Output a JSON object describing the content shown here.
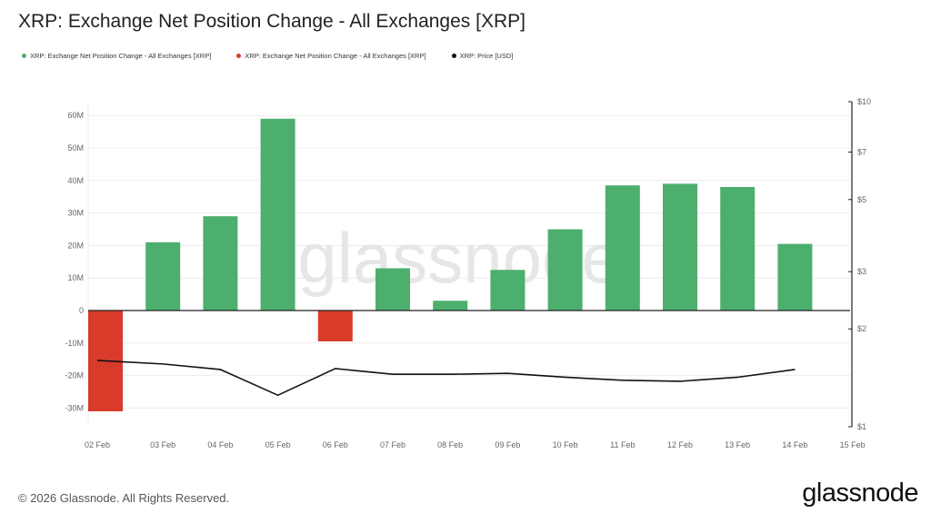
{
  "chart_data": {
    "type": "bar",
    "title": "XRP: Exchange Net Position Change - All Exchanges [XRP]",
    "categories": [
      "02 Feb",
      "03 Feb",
      "04 Feb",
      "05 Feb",
      "06 Feb",
      "07 Feb",
      "08 Feb",
      "09 Feb",
      "10 Feb",
      "11 Feb",
      "12 Feb",
      "13 Feb",
      "14 Feb",
      "15 Feb"
    ],
    "series": [
      {
        "name": "XRP: Exchange Net Position Change - All Exchanges [XRP]",
        "axis": "left",
        "values": [
          -31,
          21,
          29,
          59,
          -9.5,
          13,
          3,
          12.5,
          25,
          38.5,
          39,
          38,
          20.5,
          null
        ]
      },
      {
        "name": "XRP: Price [USD]",
        "axis": "right",
        "type": "line",
        "values": [
          1.6,
          1.56,
          1.5,
          1.25,
          1.51,
          1.45,
          1.45,
          1.46,
          1.42,
          1.39,
          1.38,
          1.42,
          1.5,
          null
        ]
      }
    ],
    "left_axis": {
      "ticks": [
        "60M",
        "50M",
        "40M",
        "30M",
        "20M",
        "10M",
        "0",
        "-10M",
        "-20M",
        "-30M"
      ],
      "ylim": [
        -32,
        64
      ],
      "unit": "M"
    },
    "right_axis": {
      "scale": "log",
      "ticks": [
        "$10",
        "$7",
        "$5",
        "$3",
        "$2",
        "$1"
      ],
      "tick_values": [
        10,
        7,
        5,
        3,
        2,
        1
      ],
      "ylim": [
        1,
        10
      ]
    },
    "legend": [
      {
        "label": "XRP: Exchange Net Position Change - All Exchanges [XRP]",
        "color": "#4caf6e"
      },
      {
        "label": "XRP: Exchange Net Position Change - All Exchanges [XRP]",
        "color": "#d93b2b"
      },
      {
        "label": "XRP: Price [USD]",
        "color": "#111111"
      }
    ],
    "colors": {
      "positive": "#4caf6e",
      "negative": "#d93b2b",
      "price": "#111111"
    }
  },
  "watermark": "glassnode",
  "footer": {
    "copyright": "© 2026 Glassnode. All Rights Reserved.",
    "brand": "glassnode"
  }
}
